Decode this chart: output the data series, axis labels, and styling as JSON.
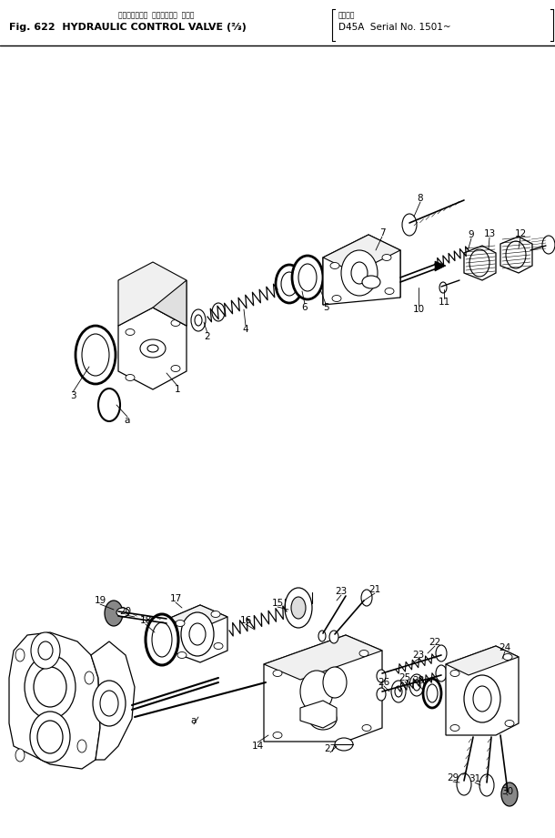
{
  "fig_width": 6.1,
  "fig_height": 9.21,
  "dpi": 100,
  "bg_color": "#ffffff",
  "line_color": "#000000",
  "title_jp": "ハイドロリック  コントロール  バルブ",
  "title_main": "Fig. 622  HYDRAULIC CONTROL VALVE (⅔)",
  "title_right_jp": "適用号機",
  "title_right": "D45A  Serial No. 1501~"
}
